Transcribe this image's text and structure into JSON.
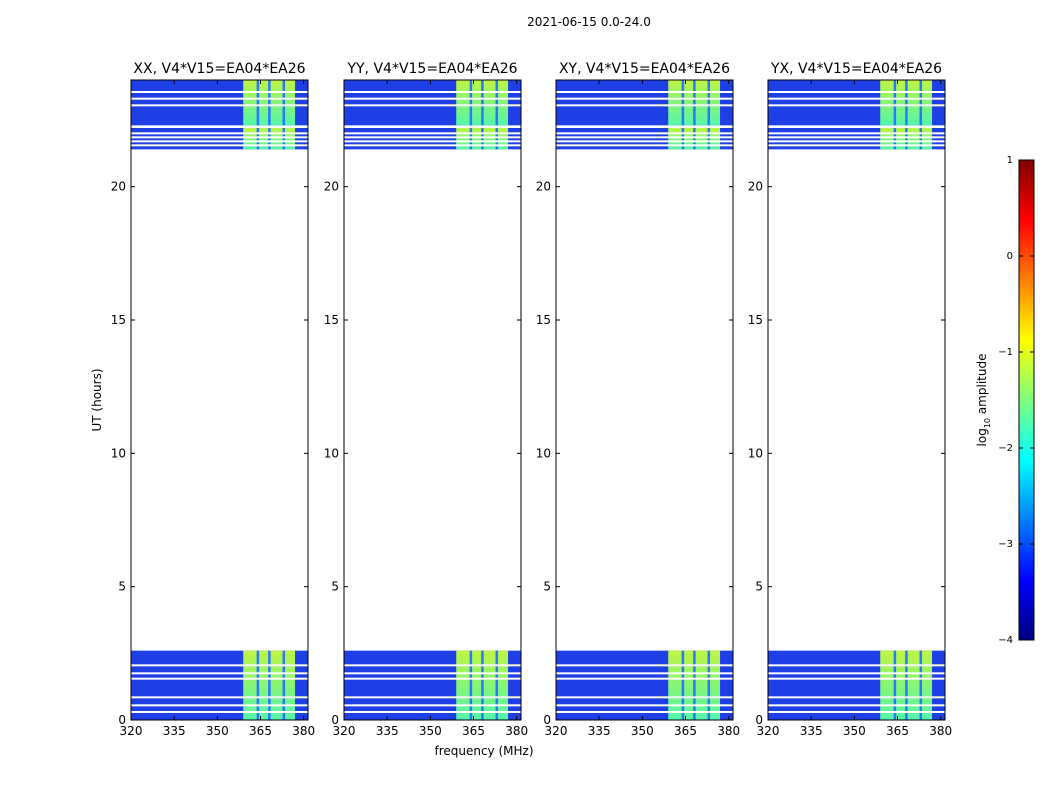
{
  "figure": {
    "suptitle": "2021-06-15 0.0-24.0",
    "xlabel": "frequency (MHz)",
    "ylabel": "UT (hours)"
  },
  "colorbar": {
    "label": "log10 amplitude",
    "label_base": "log",
    "label_sub": "10",
    "label_rest": " amplitude",
    "range": [
      -4,
      1
    ],
    "ticks": [
      1,
      0,
      -1,
      -2,
      -3,
      -4
    ],
    "tick_labels": [
      "1",
      "0",
      "−1",
      "−2",
      "−3",
      "−4"
    ],
    "colormap": "jet",
    "colors": [
      "#00007f",
      "#0000ff",
      "#007fff",
      "#00ffff",
      "#7fff7f",
      "#ffff00",
      "#ff7f00",
      "#ff0000",
      "#7f0000"
    ]
  },
  "chart_data": {
    "type": "heatmap",
    "xlim": [
      320,
      381.5
    ],
    "ylim": [
      0,
      24
    ],
    "xticks": [
      320,
      335,
      350,
      365,
      380
    ],
    "yticks": [
      0,
      5,
      10,
      15,
      20
    ],
    "data_blocks_hours": [
      [
        0,
        2.6
      ],
      [
        21.4,
        22.2
      ],
      [
        22.3,
        24
      ]
    ],
    "flagged_rows_hours": [
      0.3,
      0.55,
      0.85,
      1.55,
      1.75,
      2.05,
      21.55,
      21.7,
      21.85,
      22.0,
      23.05,
      23.3,
      23.55
    ],
    "bright_band_mhz": [
      359,
      377
    ],
    "bright_channel_gaps_mhz": [
      364,
      368,
      373
    ],
    "panels": [
      {
        "title": "XX, V4*V15=EA04*EA26"
      },
      {
        "title": "YY, V4*V15=EA04*EA26"
      },
      {
        "title": "XY, V4*V15=EA04*EA26"
      },
      {
        "title": "YX, V4*V15=EA04*EA26"
      }
    ]
  }
}
